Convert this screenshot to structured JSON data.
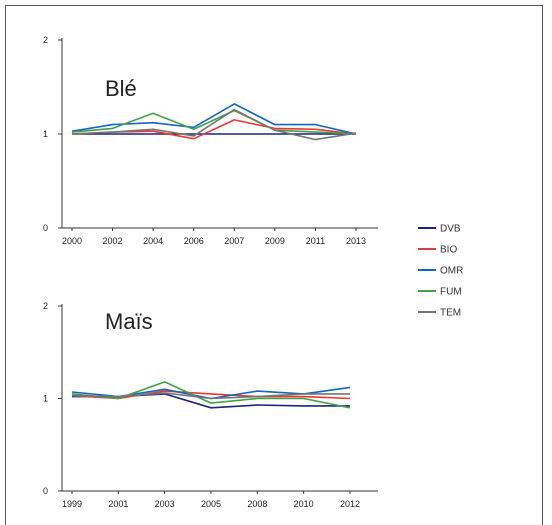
{
  "chart_data": [
    {
      "type": "line",
      "title": "Blé",
      "categories": [
        "2000",
        "2002",
        "2004",
        "2006",
        "2007",
        "2009",
        "2011",
        "2013"
      ],
      "ylim": [
        0,
        2
      ],
      "yticks": [
        "0",
        "1",
        "2"
      ],
      "series": [
        {
          "name": "DVB",
          "color": "#1a237e",
          "values": [
            1.0,
            1.0,
            1.0,
            1.0,
            1.0,
            1.0,
            1.0,
            1.0
          ]
        },
        {
          "name": "BIO",
          "color": "#e53935",
          "values": [
            1.0,
            1.02,
            1.03,
            0.95,
            1.15,
            1.06,
            1.05,
            1.0
          ]
        },
        {
          "name": "OMR",
          "color": "#1565c0",
          "values": [
            1.03,
            1.1,
            1.12,
            1.07,
            1.32,
            1.1,
            1.1,
            1.0
          ]
        },
        {
          "name": "FUM",
          "color": "#43a047",
          "values": [
            1.02,
            1.06,
            1.22,
            1.05,
            1.25,
            1.04,
            1.02,
            1.0
          ]
        },
        {
          "name": "TEM",
          "color": "#757575",
          "values": [
            1.0,
            1.02,
            1.05,
            0.98,
            1.26,
            1.04,
            0.94,
            1.01
          ]
        }
      ],
      "legend": "right"
    },
    {
      "type": "line",
      "title": "Maïs",
      "categories": [
        "1999",
        "2001",
        "2003",
        "2005",
        "2008",
        "2010",
        "2012"
      ],
      "ylim": [
        0,
        2
      ],
      "yticks": [
        "0",
        "1",
        "2"
      ],
      "series": [
        {
          "name": "DVB",
          "color": "#1a237e",
          "values": [
            1.02,
            1.02,
            1.05,
            0.9,
            0.93,
            0.92,
            0.92
          ]
        },
        {
          "name": "BIO",
          "color": "#e53935",
          "values": [
            1.03,
            1.0,
            1.08,
            1.05,
            1.02,
            1.02,
            1.0
          ]
        },
        {
          "name": "OMR",
          "color": "#1565c0",
          "values": [
            1.07,
            1.02,
            1.1,
            1.0,
            1.08,
            1.05,
            1.12
          ]
        },
        {
          "name": "FUM",
          "color": "#43a047",
          "values": [
            1.05,
            1.0,
            1.18,
            0.95,
            1.0,
            1.0,
            0.9
          ]
        },
        {
          "name": "TEM",
          "color": "#757575",
          "values": [
            1.03,
            1.02,
            1.06,
            1.0,
            1.02,
            1.05,
            1.05
          ]
        }
      ]
    }
  ]
}
